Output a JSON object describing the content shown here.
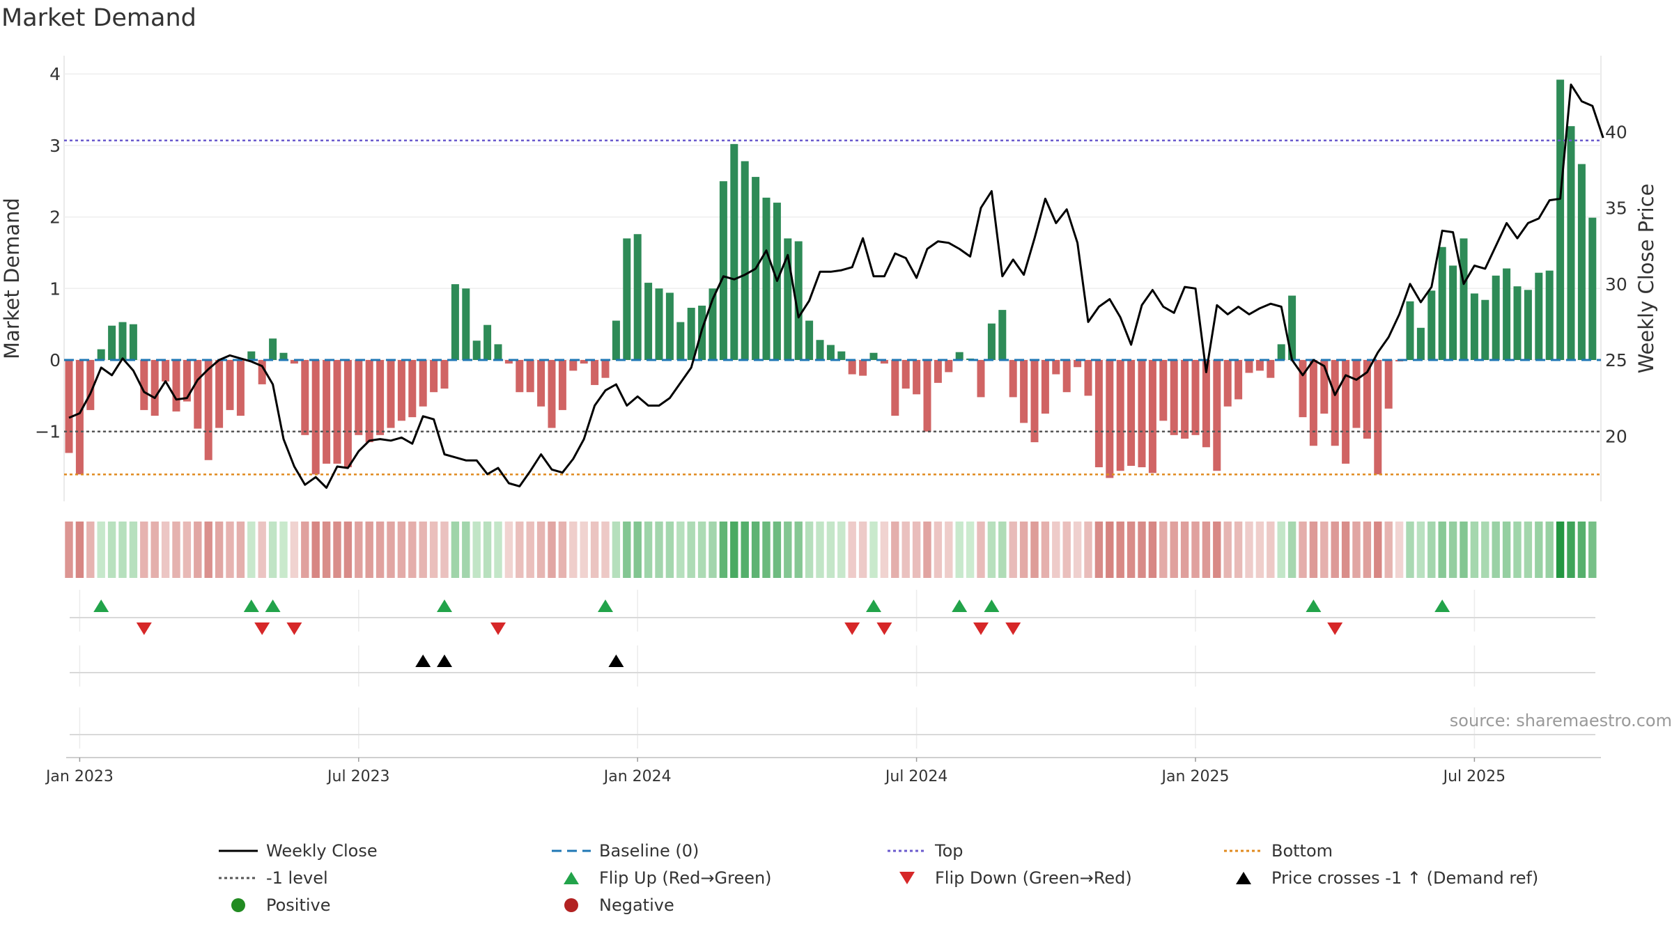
{
  "chart_data": {
    "type": "bar",
    "title": "Market Demand",
    "ylabel_left": "Market Demand",
    "ylabel_right": "Weekly Close Price",
    "ylim_left": [
      -2,
      4.3
    ],
    "ylim_right": [
      15.7,
      45.0
    ],
    "yticks_left": [
      {
        "v": 4,
        "t": "4"
      },
      {
        "v": 3,
        "t": "3"
      },
      {
        "v": 2,
        "t": "2"
      },
      {
        "v": 1,
        "t": "1"
      },
      {
        "v": 0,
        "t": "0"
      },
      {
        "v": -1,
        "t": "−1"
      }
    ],
    "yticks_right": [
      {
        "v": 40,
        "t": "40"
      },
      {
        "v": 35,
        "t": "35"
      },
      {
        "v": 30,
        "t": "30"
      },
      {
        "v": 25,
        "t": "25"
      },
      {
        "v": 20,
        "t": "20"
      }
    ],
    "xticks": [
      {
        "i": 1,
        "t": "Jan 2023"
      },
      {
        "i": 27,
        "t": "Jul 2023"
      },
      {
        "i": 53,
        "t": "Jan 2024"
      },
      {
        "i": 79,
        "t": "Jul 2024"
      },
      {
        "i": 105,
        "t": "Jan 2025"
      },
      {
        "i": 131,
        "t": "Jul 2025"
      }
    ],
    "levels": {
      "top": 3.07,
      "bottom": -1.6,
      "minus_one": -1,
      "baseline": 0
    },
    "colors": {
      "positive": "#2e8b57",
      "negative": "#cd5c5c",
      "price": "#000000",
      "top": "#6a5acd",
      "bottom": "#e08a1e",
      "minus_one": "#555555",
      "baseline": "#1f77b4",
      "flip_up": "#22a34a",
      "flip_down": "#d62728",
      "cross": "#000000"
    },
    "series": [
      {
        "name": "Market Demand",
        "values": [
          -1.3,
          -1.6,
          -0.7,
          0.15,
          0.48,
          0.53,
          0.5,
          -0.7,
          -0.78,
          -0.3,
          -0.72,
          -0.58,
          -0.96,
          -1.4,
          -0.95,
          -0.7,
          -0.78,
          0.12,
          -0.34,
          0.3,
          0.1,
          -0.05,
          -1.05,
          -1.6,
          -1.45,
          -1.45,
          -1.5,
          -1.05,
          -1.15,
          -1.05,
          -0.95,
          -0.85,
          -0.8,
          -0.65,
          -0.45,
          -0.4,
          1.06,
          1.0,
          0.27,
          0.49,
          0.22,
          -0.05,
          -0.45,
          -0.45,
          -0.65,
          -0.95,
          -0.7,
          -0.15,
          -0.05,
          -0.35,
          -0.25,
          0.55,
          1.7,
          1.76,
          1.08,
          1.0,
          0.94,
          0.53,
          0.73,
          0.76,
          1.0,
          2.5,
          3.02,
          2.78,
          2.56,
          2.27,
          2.2,
          1.7,
          1.66,
          0.55,
          0.28,
          0.21,
          0.12,
          -0.2,
          -0.22,
          0.1,
          -0.05,
          -0.78,
          -0.4,
          -0.48,
          -1.0,
          -0.32,
          -0.17,
          0.11,
          0.02,
          -0.52,
          0.51,
          0.7,
          -0.52,
          -0.88,
          -1.15,
          -0.75,
          -0.2,
          -0.45,
          -0.1,
          -0.5,
          -1.5,
          -1.65,
          -1.55,
          -1.48,
          -1.5,
          -1.58,
          -0.85,
          -1.05,
          -1.1,
          -1.05,
          -1.22,
          -1.55,
          -0.65,
          -0.55,
          -0.18,
          -0.15,
          -0.25,
          0.22,
          0.9,
          -0.8,
          -1.2,
          -0.75,
          -1.2,
          -1.45,
          -0.95,
          -1.1,
          -1.6,
          -0.68,
          -0.02,
          0.82,
          0.45,
          0.97,
          1.58,
          1.32,
          1.7,
          0.93,
          0.84,
          1.18,
          1.28,
          1.03,
          0.98,
          1.22,
          1.25,
          3.92,
          3.27,
          2.74,
          1.99
        ]
      },
      {
        "name": "Weekly Close",
        "values": [
          21.2,
          21.5,
          22.8,
          24.5,
          24.0,
          25.1,
          24.3,
          22.9,
          22.5,
          23.6,
          22.4,
          22.5,
          23.7,
          24.4,
          25.0,
          25.3,
          25.1,
          24.9,
          24.6,
          23.4,
          19.8,
          18.0,
          16.8,
          17.3,
          16.6,
          18.0,
          17.9,
          19.0,
          19.7,
          19.8,
          19.7,
          19.9,
          19.5,
          21.3,
          21.1,
          18.8,
          18.6,
          18.4,
          18.4,
          17.5,
          17.9,
          16.9,
          16.7,
          17.7,
          18.8,
          17.8,
          17.6,
          18.5,
          19.8,
          22.0,
          23.0,
          23.4,
          22.0,
          22.6,
          22.0,
          22.0,
          22.5,
          23.5,
          24.5,
          27.0,
          29.0,
          30.5,
          30.3,
          30.6,
          31.0,
          32.2,
          30.2,
          31.9,
          27.8,
          28.9,
          30.8,
          30.8,
          30.9,
          31.1,
          33.0,
          30.5,
          30.5,
          32.0,
          31.7,
          30.4,
          32.3,
          32.8,
          32.7,
          32.3,
          31.8,
          35.0,
          36.1,
          30.5,
          31.6,
          30.6,
          33.0,
          35.6,
          34.0,
          34.9,
          32.7,
          27.5,
          28.5,
          29.0,
          27.8,
          26.0,
          28.6,
          29.6,
          28.5,
          28.1,
          29.8,
          29.7,
          24.2,
          28.6,
          28.0,
          28.5,
          28.0,
          28.4,
          28.7,
          28.5,
          25.0,
          24.0,
          25.0,
          24.6,
          22.7,
          24.0,
          23.7,
          24.2,
          25.5,
          26.5,
          28.0,
          30.0,
          28.8,
          29.8,
          33.5,
          33.4,
          30.0,
          31.2,
          31.0,
          32.5,
          34.0,
          33.0,
          34.0,
          34.3,
          35.5,
          35.6,
          43.1,
          42.0,
          41.7,
          39.6
        ]
      }
    ],
    "flip_up": [
      3,
      17,
      19,
      35,
      50,
      75,
      83,
      86,
      116,
      128
    ],
    "flip_down": [
      7,
      18,
      21,
      40,
      73,
      76,
      85,
      88,
      118
    ],
    "price_cross": [
      33,
      35,
      51
    ],
    "heat_strip": "color by Market Demand"
  },
  "legend": [
    {
      "key": "price",
      "label": "Weekly Close",
      "kind": "line"
    },
    {
      "key": "baseline",
      "label": "Baseline (0)",
      "kind": "dash"
    },
    {
      "key": "top",
      "label": "Top",
      "kind": "dot"
    },
    {
      "key": "bottom",
      "label": "Bottom",
      "kind": "dot"
    },
    {
      "key": "minus_one",
      "label": "-1 level",
      "kind": "dot"
    },
    {
      "key": "flip_up",
      "label": "Flip Up (Red→Green)",
      "kind": "tri-up"
    },
    {
      "key": "flip_down",
      "label": "Flip Down (Green→Red)",
      "kind": "tri-down"
    },
    {
      "key": "cross",
      "label": "Price crosses -1 ↑ (Demand ref)",
      "kind": "tri-up"
    },
    {
      "key": "positive_dot",
      "label": "Positive",
      "kind": "circle",
      "color": "#228b22"
    },
    {
      "key": "negative_dot",
      "label": "Negative",
      "kind": "circle",
      "color": "#b22222"
    }
  ],
  "source": "source: sharemaestro.com"
}
